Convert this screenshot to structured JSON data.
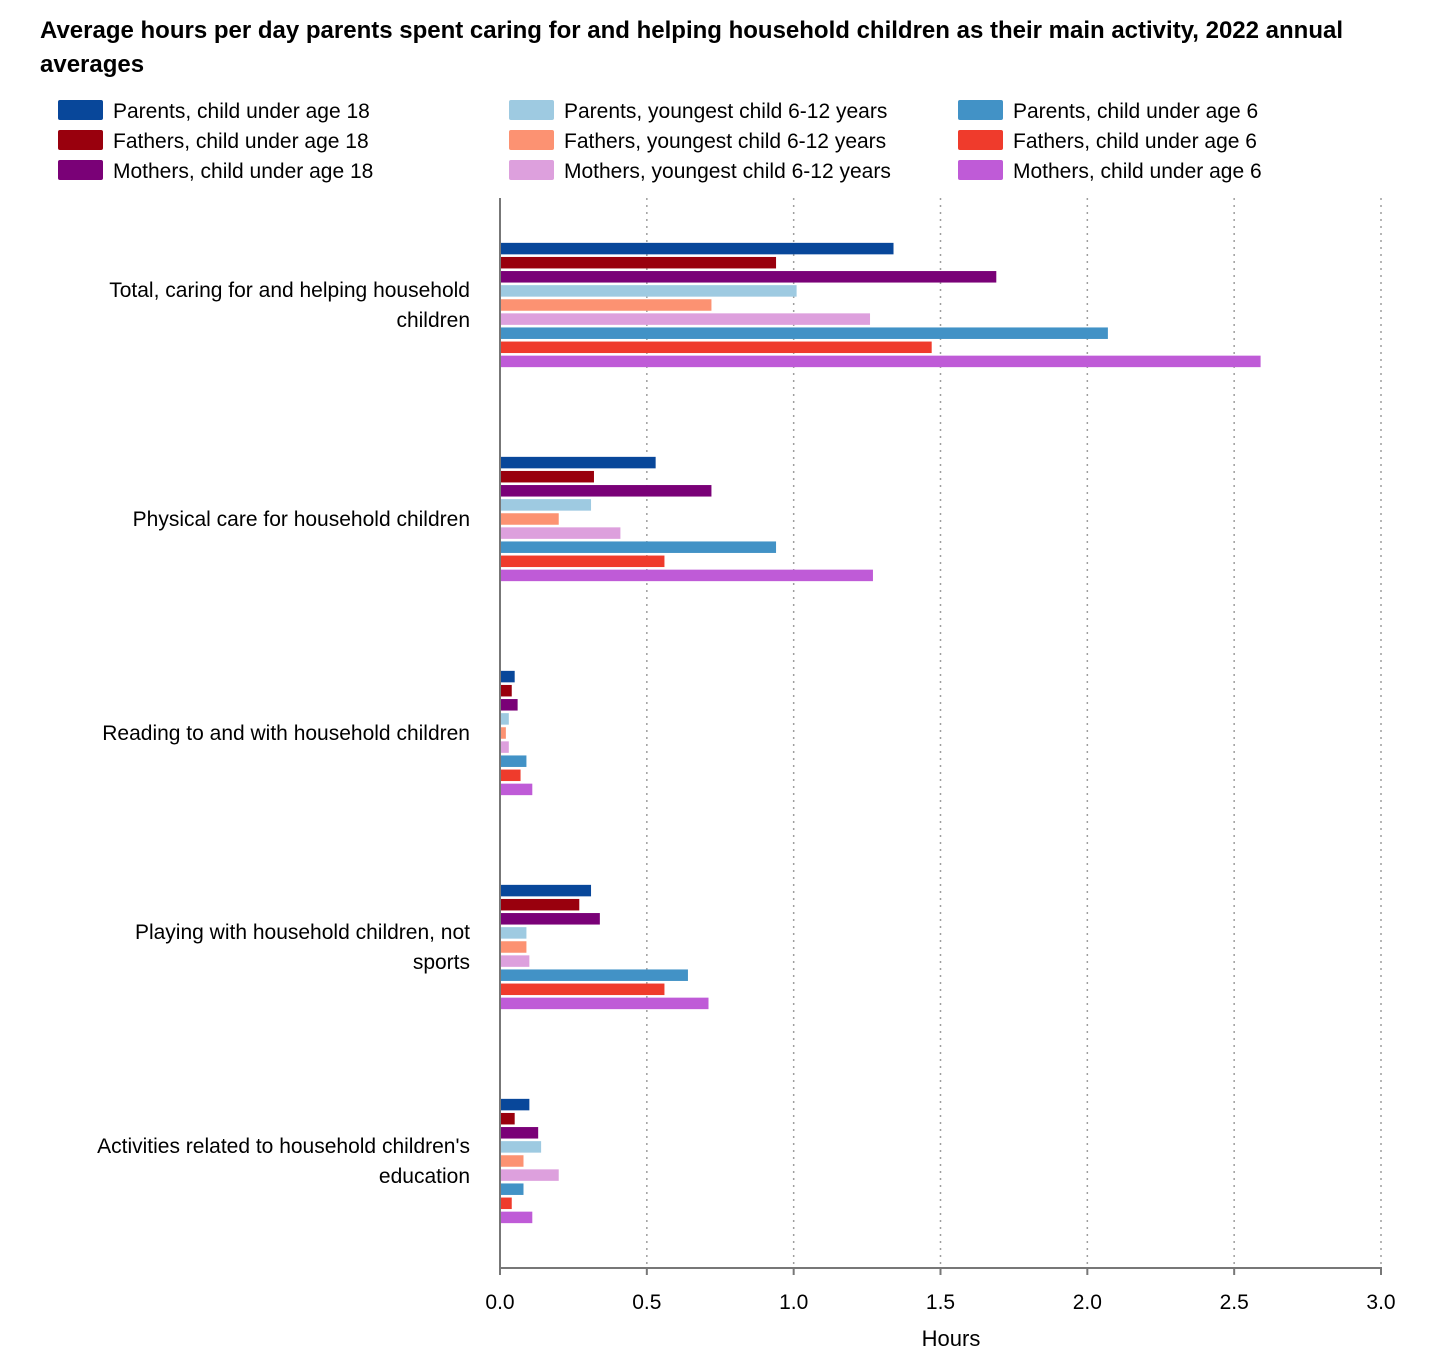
{
  "chart_data": {
    "type": "bar",
    "orientation": "horizontal",
    "title": "Average hours per day parents spent caring for and helping household children as their main activity, 2022 annual averages",
    "xlabel": "Hours",
    "ylabel": "",
    "xlim": [
      0,
      3.0
    ],
    "xticks": [
      "0.0",
      "0.5",
      "1.0",
      "1.5",
      "2.0",
      "2.5",
      "3.0"
    ],
    "grid": "vertical dotted",
    "legend_position": "top",
    "categories": [
      [
        "Total, caring for and helping household",
        "children"
      ],
      [
        "Physical care for household children"
      ],
      [
        "Reading to and with household children"
      ],
      [
        "Playing with household children, not",
        "sports"
      ],
      [
        "Activities related to household children's",
        "education"
      ]
    ],
    "series": [
      {
        "name": "Parents, child under age 18",
        "color": "#08479a",
        "values": [
          1.34,
          0.53,
          0.05,
          0.31,
          0.1
        ]
      },
      {
        "name": "Fathers, child under age 18",
        "color": "#99000d",
        "values": [
          0.94,
          0.32,
          0.04,
          0.27,
          0.05
        ]
      },
      {
        "name": "Mothers, child under age 18",
        "color": "#7a0177",
        "values": [
          1.69,
          0.72,
          0.06,
          0.34,
          0.13
        ]
      },
      {
        "name": "Parents, youngest child 6-12 years",
        "color": "#9ecae1",
        "values": [
          1.01,
          0.31,
          0.03,
          0.09,
          0.14
        ]
      },
      {
        "name": "Fathers, youngest child 6-12 years",
        "color": "#fc9272",
        "values": [
          0.72,
          0.2,
          0.02,
          0.09,
          0.08
        ]
      },
      {
        "name": "Mothers, youngest child 6-12 years",
        "color": "#dda0dd",
        "values": [
          1.26,
          0.41,
          0.03,
          0.1,
          0.2
        ]
      },
      {
        "name": "Parents, child under age 6",
        "color": "#4292c6",
        "values": [
          2.07,
          0.94,
          0.09,
          0.64,
          0.08
        ]
      },
      {
        "name": "Fathers, child under age 6",
        "color": "#ef3b2c",
        "values": [
          1.47,
          0.56,
          0.07,
          0.56,
          0.04
        ]
      },
      {
        "name": "Mothers, child under age 6",
        "color": "#bf5bd7",
        "values": [
          2.59,
          1.27,
          0.11,
          0.71,
          0.11
        ]
      }
    ]
  }
}
